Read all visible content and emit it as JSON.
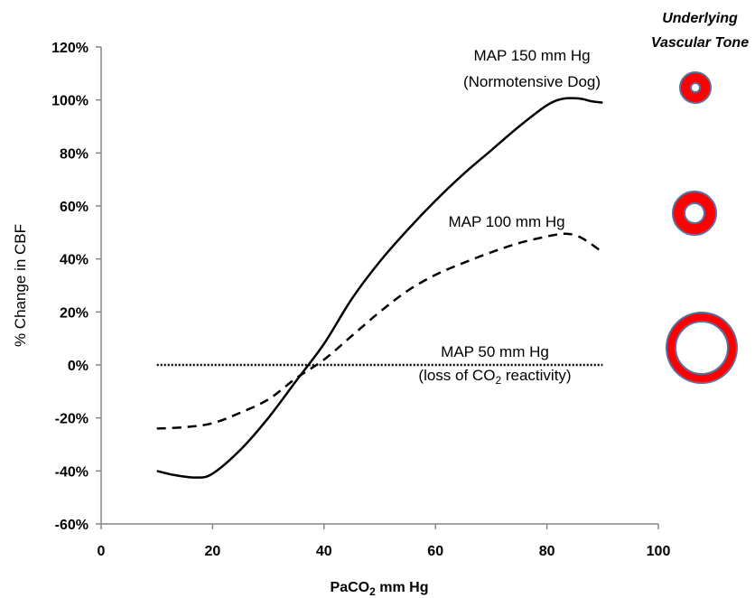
{
  "chart_data": {
    "type": "line",
    "xlabel": {
      "base": "PaCO",
      "sub": "2",
      "rest": " mm Hg"
    },
    "ylabel": "% Change in CBF",
    "xlim": [
      0,
      100
    ],
    "ylim": [
      -60,
      120
    ],
    "x_ticks": [
      0,
      20,
      40,
      60,
      80,
      100
    ],
    "y_ticks": [
      -60,
      -40,
      -20,
      0,
      20,
      40,
      60,
      80,
      100,
      120
    ],
    "y_tick_format": "percent",
    "grid": false,
    "series": [
      {
        "name": "MAP 150 mm Hg",
        "style": "solid",
        "x": [
          10,
          13,
          17,
          20,
          25,
          30,
          35,
          40,
          45,
          50,
          55,
          60,
          65,
          70,
          75,
          80,
          83,
          86,
          88,
          90
        ],
        "y": [
          -40,
          -41.5,
          -42.5,
          -41,
          -32,
          -20,
          -6,
          8,
          25,
          39,
          51,
          62,
          72,
          81,
          90,
          98,
          100.5,
          100.5,
          99.5,
          99
        ]
      },
      {
        "name": "MAP 100 mm Hg",
        "style": "dashed",
        "x": [
          10,
          15,
          20,
          25,
          30,
          35,
          40,
          45,
          50,
          55,
          60,
          65,
          70,
          75,
          80,
          83,
          85,
          87,
          90
        ],
        "y": [
          -24,
          -23.5,
          -22,
          -18,
          -13,
          -5,
          2,
          11,
          20,
          28,
          34,
          38.5,
          42.5,
          46,
          48.5,
          49.5,
          49,
          47,
          42.5
        ]
      },
      {
        "name": "MAP 50 mm Hg",
        "style": "dotted",
        "x": [
          10,
          90
        ],
        "y": [
          0,
          0
        ]
      }
    ],
    "annotations": [
      {
        "line1": "MAP 150 mm Hg",
        "line2": "(Normotensive Dog)"
      },
      {
        "line1": "MAP 100 mm Hg"
      },
      {
        "line1": "MAP 50 mm Hg",
        "line2_base": "(loss of CO",
        "line2_sub": "2",
        "line2_rest": " reactivity)"
      }
    ]
  },
  "side_panel": {
    "heading_line1": "Underlying",
    "heading_line2": "Vascular Tone",
    "vessel_ring_color": "#ff0000",
    "vessel_lumen_color": "#ffffff",
    "vessel_outline_color": "#5a6fa0",
    "vessel_icons": [
      "high-tone-vessel-icon",
      "medium-tone-vessel-icon",
      "low-tone-vessel-icon"
    ]
  },
  "colors": {
    "axis": "#868686",
    "line": "#000000"
  }
}
